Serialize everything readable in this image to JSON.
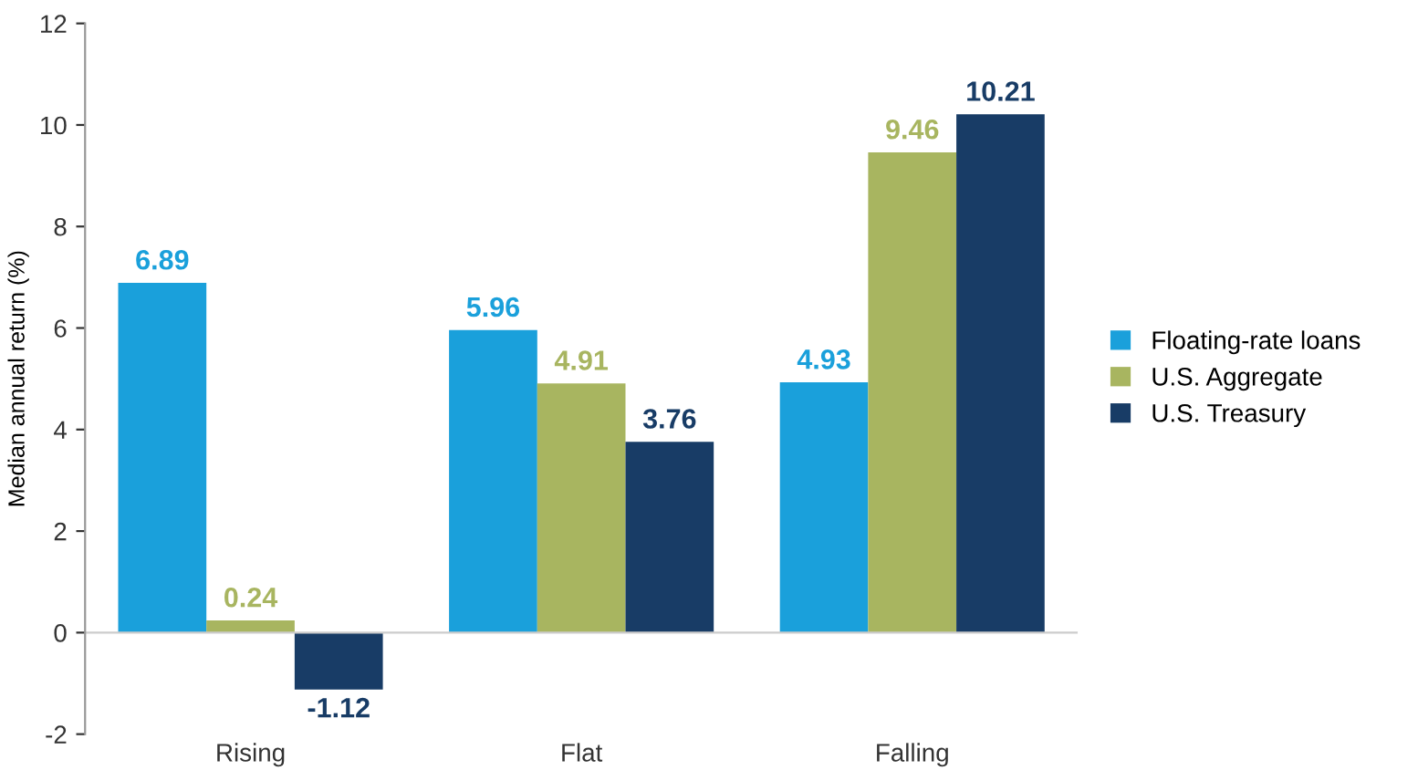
{
  "chart_data": {
    "type": "bar",
    "ylabel": "Median annual return (%)",
    "categories": [
      "Rising",
      "Flat",
      "Falling"
    ],
    "series": [
      {
        "name": "Floating-rate loans",
        "color": "#1aa0db",
        "values": [
          6.89,
          5.96,
          4.93
        ]
      },
      {
        "name": "U.S. Aggregate",
        "color": "#a8b560",
        "values": [
          0.24,
          4.91,
          9.46
        ]
      },
      {
        "name": "U.S. Treasury",
        "color": "#183c66",
        "values": [
          -1.12,
          3.76,
          10.21
        ]
      }
    ],
    "ylim": [
      -2,
      12
    ],
    "yticks": [
      {
        "value": -2,
        "label": "-2"
      },
      0,
      2,
      4,
      6,
      8,
      10,
      12
    ],
    "data_labels": true,
    "legend": "right",
    "grid": false,
    "ref_lines": [
      {
        "axis": "y",
        "value": 0,
        "color": "#cccccc"
      }
    ]
  }
}
